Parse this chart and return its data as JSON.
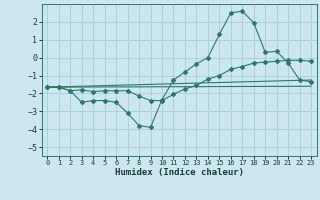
{
  "xlabel": "Humidex (Indice chaleur)",
  "background_color": "#cce8ee",
  "grid_color": "#aacdd6",
  "line_color": "#2a7a6a",
  "xlim": [
    -0.5,
    23.5
  ],
  "ylim": [
    -5.5,
    3.0
  ],
  "yticks": [
    2,
    1,
    0,
    -1,
    -2,
    -3,
    -4,
    -5
  ],
  "xticks": [
    0,
    1,
    2,
    3,
    4,
    5,
    6,
    7,
    8,
    9,
    10,
    11,
    12,
    13,
    14,
    15,
    16,
    17,
    18,
    19,
    20,
    21,
    22,
    23
  ],
  "line1_x": [
    0,
    1,
    2,
    3,
    4,
    5,
    6,
    7,
    8,
    9,
    10,
    11,
    12,
    13,
    14,
    15,
    16,
    17,
    18,
    19,
    20,
    21,
    22,
    23
  ],
  "line1_y": [
    -1.65,
    -1.65,
    -1.85,
    -2.5,
    -2.4,
    -2.4,
    -2.5,
    -3.1,
    -3.8,
    -3.9,
    -2.35,
    -1.25,
    -0.8,
    -0.35,
    0.0,
    1.3,
    2.5,
    2.6,
    1.95,
    0.3,
    0.35,
    -0.3,
    -1.25,
    -1.35
  ],
  "line2_x": [
    0,
    1,
    2,
    3,
    4,
    5,
    6,
    7,
    8,
    9,
    10,
    11,
    12,
    13,
    14,
    15,
    16,
    17,
    18,
    19,
    20,
    21,
    22,
    23
  ],
  "line2_y": [
    -1.65,
    -1.65,
    -1.85,
    -1.8,
    -1.9,
    -1.85,
    -1.85,
    -1.85,
    -2.15,
    -2.4,
    -2.4,
    -2.05,
    -1.75,
    -1.55,
    -1.2,
    -1.0,
    -0.65,
    -0.5,
    -0.3,
    -0.25,
    -0.2,
    -0.15,
    -0.15,
    -0.2
  ],
  "line3_x": [
    0,
    23
  ],
  "line3_y": [
    -1.65,
    -1.25
  ],
  "line4_x": [
    0,
    23
  ],
  "line4_y": [
    -1.65,
    -1.6
  ]
}
